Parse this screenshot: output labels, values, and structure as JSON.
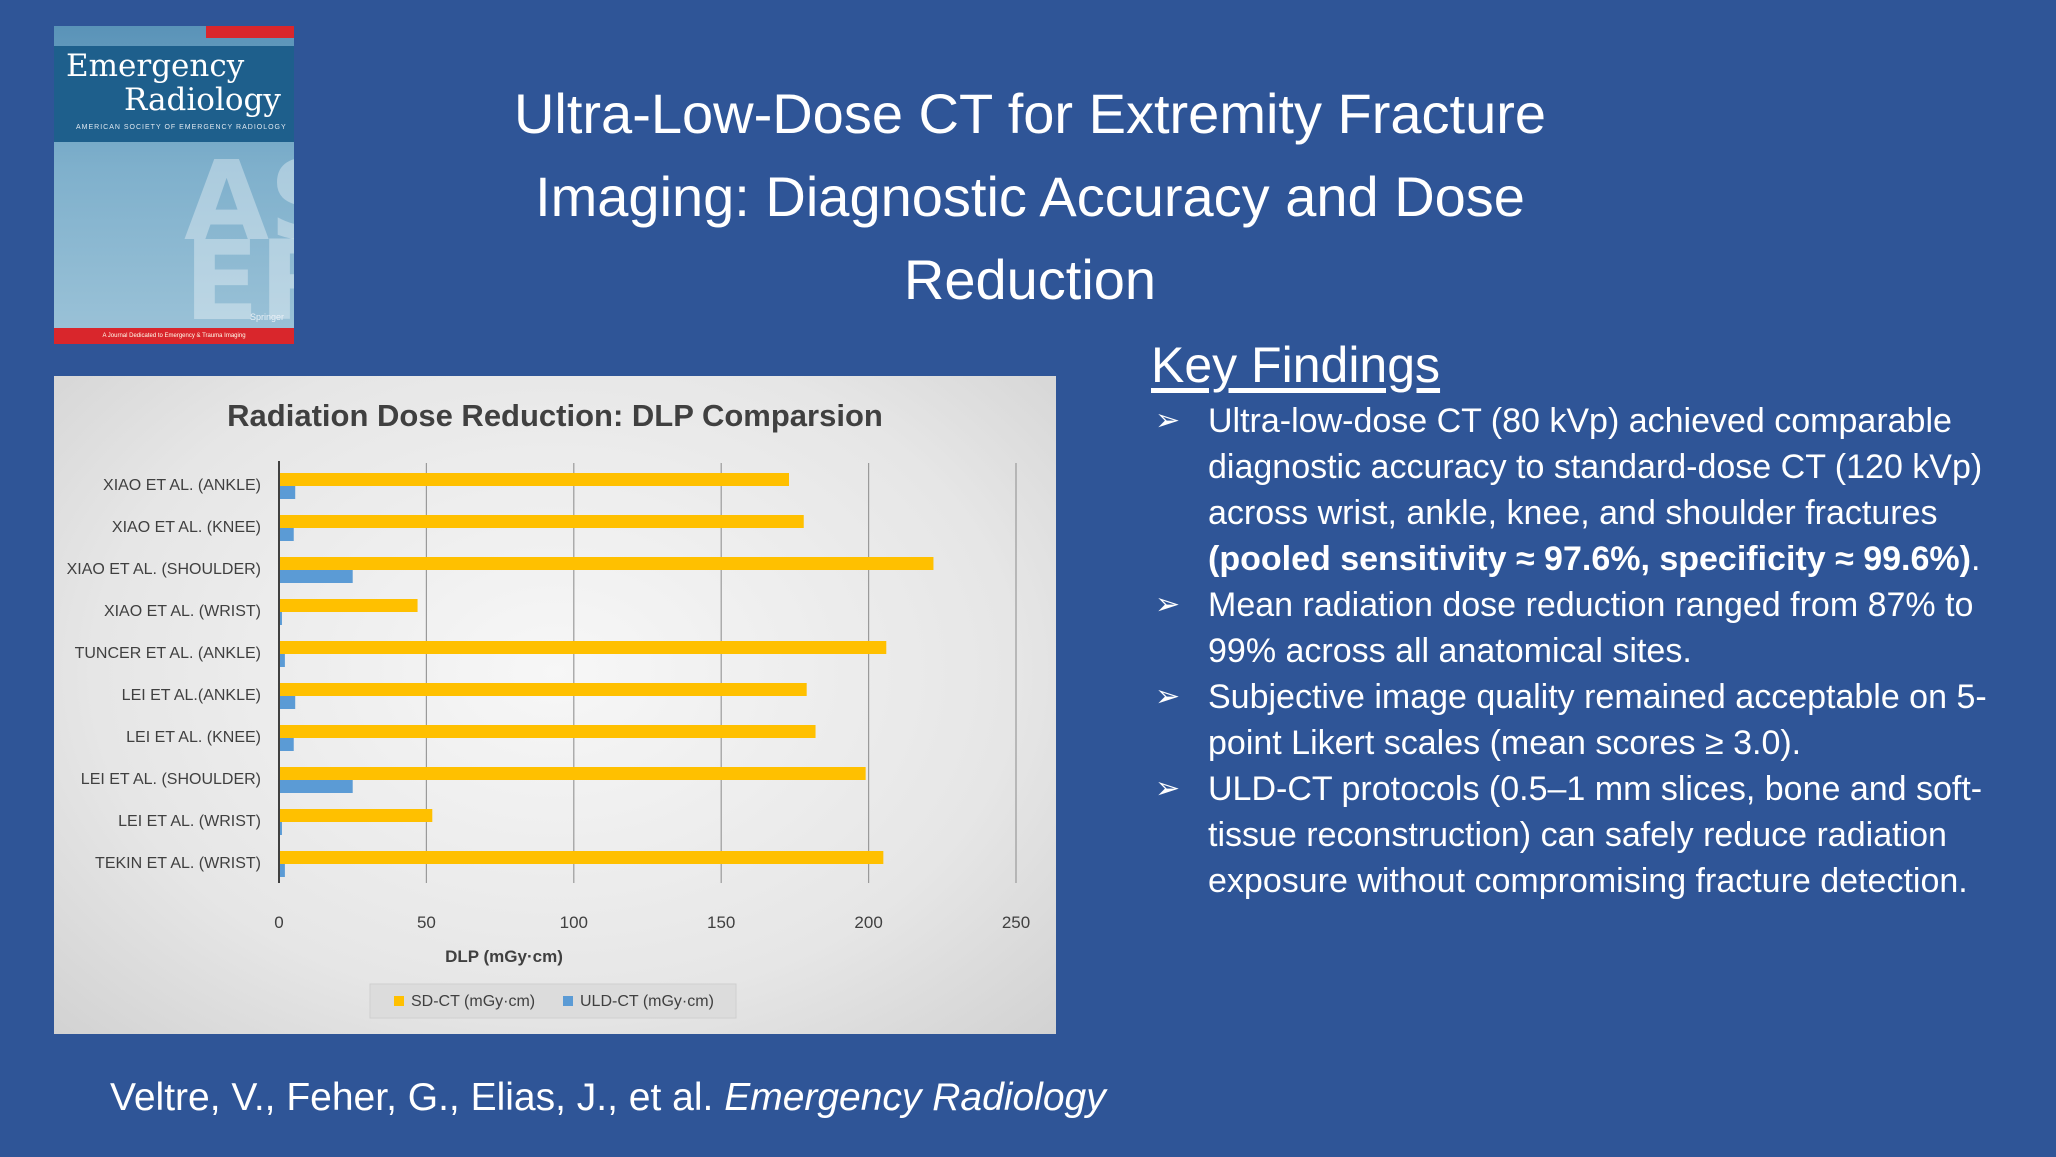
{
  "title": "Ultra-Low-Dose CT for Extremity Fracture Imaging: Diagnostic Accuracy and Dose Reduction",
  "cover": {
    "line1": "Emergency",
    "line2": "Radiology",
    "society": "AMERICAN SOCIETY OF EMERGENCY RADIOLOGY",
    "letters1": "AS",
    "letters2": "ER",
    "publisher": "Springer",
    "tagline": "A Journal Dedicated to Emergency & Trauma Imaging"
  },
  "key_findings": {
    "heading": "Key Findings",
    "items": [
      {
        "text": "Ultra-low-dose CT (80 kVp) achieved comparable diagnostic accuracy to standard-dose CT (120 kVp) across wrist, ankle, knee, and shoulder fractures ",
        "bold": "(pooled sensitivity ≈ 97.6%, specificity ≈ 99.6%)",
        "after": "."
      },
      {
        "text": "Mean radiation dose reduction ranged from 87% to 99% across all anatomical sites."
      },
      {
        "text": "Subjective image quality remained acceptable on 5-point Likert scales (mean scores ≥ 3.0)."
      },
      {
        "text": "ULD-CT protocols (0.5–1 mm slices, bone and soft-tissue reconstruction) can safely reduce radiation exposure without compromising fracture detection."
      }
    ]
  },
  "citation": {
    "authors": "Veltre, V., Feher, G., Elias, J., et al. ",
    "journal": "Emergency Radiology"
  },
  "chart_data": {
    "type": "bar",
    "orientation": "horizontal",
    "title": "Radiation Dose Reduction: DLP Comparsion",
    "xlabel": "DLP (mGy·cm)",
    "ylabel": "",
    "xlim": [
      0,
      250
    ],
    "xticks": [
      0,
      50,
      100,
      150,
      200,
      250
    ],
    "grid": true,
    "legend_position": "bottom",
    "categories": [
      "XIAO ET AL. (ANKLE)",
      "XIAO ET AL. (KNEE)",
      "XIAO ET AL. (SHOULDER)",
      "XIAO ET AL. (WRIST)",
      "TUNCER ET AL. (ANKLE)",
      "LEI ET AL.(ANKLE)",
      "LEI ET AL. (KNEE)",
      "LEI ET AL. (SHOULDER)",
      "LEI ET AL. (WRIST)",
      "TEKIN ET AL. (WRIST)"
    ],
    "series": [
      {
        "name": "SD-CT (mGy·cm)",
        "color": "#ffc000",
        "values": [
          173,
          178,
          222,
          47,
          206,
          179,
          182,
          199,
          52,
          205
        ]
      },
      {
        "name": "ULD-CT (mGy·cm)",
        "color": "#5b9bd5",
        "values": [
          5.5,
          5,
          25,
          1,
          2,
          5.5,
          5,
          25,
          1,
          2
        ]
      }
    ]
  }
}
